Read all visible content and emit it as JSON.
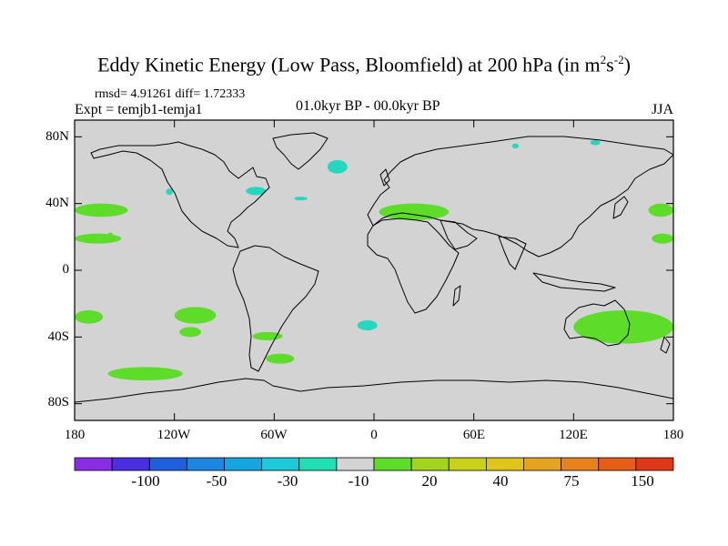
{
  "title": {
    "main": "Eddy Kinetic Energy (Low Pass, Bloomfield) at 200 hPa (in m",
    "sup1": "2",
    "mid": "s",
    "sup2": "-2",
    "close": ")"
  },
  "subtitle": {
    "stats": "rmsd= 4.91261 diff= 1.72333",
    "experiment": "Expt = temjb1-temja1",
    "period": "01.0kyr BP - 00.0kyr BP",
    "season": "JJA"
  },
  "map": {
    "lat_labels": [
      "80N",
      "40N",
      "0",
      "40S",
      "80S"
    ],
    "lon_labels": [
      "180",
      "120W",
      "60W",
      "0",
      "60E",
      "120E",
      "180"
    ],
    "background_color": "#d3d3d3",
    "positive_color": "#5ddd2a",
    "negative_color": "#24d8c0"
  },
  "colorbar": {
    "colors": [
      "#8a2ee6",
      "#4a2fe2",
      "#1f5fdc",
      "#1c86e0",
      "#14a6e0",
      "#1ccad8",
      "#20dfb4",
      "#d3d3d3",
      "#5ddd2a",
      "#a2d61e",
      "#c8d21a",
      "#dfc41c",
      "#e4a320",
      "#e6811c",
      "#e45e18",
      "#de3818"
    ],
    "labels": [
      "-100",
      "-50",
      "-30",
      "-10",
      "20",
      "40",
      "75",
      "150"
    ]
  },
  "chart_data": {
    "type": "heatmap",
    "title": "Eddy Kinetic Energy (Low Pass, Bloomfield) at 200 hPa (in m^2 s^-2)",
    "projection": "cylindrical equidistant",
    "lon_range": [
      -180,
      180
    ],
    "lat_range": [
      -90,
      90
    ],
    "contour_levels": [
      -150,
      -100,
      -75,
      -50,
      -40,
      -30,
      -20,
      -10,
      10,
      20,
      30,
      40,
      50,
      75,
      100,
      150
    ],
    "anomalies": [
      {
        "sign": "+",
        "range": "10 to 20",
        "lon": [
          -180,
          -148
        ],
        "lat": [
          32,
          40
        ]
      },
      {
        "sign": "+",
        "range": "10 to 20",
        "lon": [
          -180,
          -152
        ],
        "lat": [
          16,
          22
        ]
      },
      {
        "sign": "+",
        "range": "10 to 20",
        "lon": [
          -160,
          -157
        ],
        "lat": [
          21,
          22
        ]
      },
      {
        "sign": "+",
        "range": "10 to 20",
        "lon": [
          -180,
          -163
        ],
        "lat": [
          -32,
          -24
        ]
      },
      {
        "sign": "+",
        "range": "10 to 20",
        "lon": [
          -120,
          -95
        ],
        "lat": [
          -32,
          -22
        ]
      },
      {
        "sign": "+",
        "range": "10 to 20",
        "lon": [
          -117,
          -104
        ],
        "lat": [
          -40,
          -34
        ]
      },
      {
        "sign": "+",
        "range": "10 to 20",
        "lon": [
          -73,
          -55
        ],
        "lat": [
          -42,
          -37
        ]
      },
      {
        "sign": "+",
        "range": "10 to 20",
        "lon": [
          -160,
          -115
        ],
        "lat": [
          -66,
          -58
        ]
      },
      {
        "sign": "+",
        "range": "10 to 20",
        "lon": [
          -65,
          -48
        ],
        "lat": [
          -56,
          -50
        ]
      },
      {
        "sign": "+",
        "range": "10 to 20",
        "lon": [
          3,
          45
        ],
        "lat": [
          30,
          40
        ]
      },
      {
        "sign": "+",
        "range": "10 to 20",
        "lon": [
          120,
          180
        ],
        "lat": [
          -44,
          -24
        ]
      },
      {
        "sign": "+",
        "range": "10 to 20",
        "lon": [
          165,
          180
        ],
        "lat": [
          32,
          40
        ]
      },
      {
        "sign": "+",
        "range": "10 to 20",
        "lon": [
          167,
          180
        ],
        "lat": [
          16,
          22
        ]
      },
      {
        "sign": "-",
        "range": "-10 to -20",
        "lon": [
          -28,
          -16
        ],
        "lat": [
          58,
          66
        ]
      },
      {
        "sign": "-",
        "range": "-10 to -20",
        "lon": [
          -125,
          -121
        ],
        "lat": [
          45,
          49
        ]
      },
      {
        "sign": "-",
        "range": "-10 to -20",
        "lon": [
          -77,
          -65
        ],
        "lat": [
          45,
          50
        ]
      },
      {
        "sign": "-",
        "range": "-10 to -20",
        "lon": [
          -48,
          -40
        ],
        "lat": [
          42,
          44
        ]
      },
      {
        "sign": "-",
        "range": "-10 to -20",
        "lon": [
          -10,
          2
        ],
        "lat": [
          -36,
          -30
        ]
      },
      {
        "sign": "-",
        "range": "-10 to -20",
        "lon": [
          130,
          136
        ],
        "lat": [
          75,
          78
        ]
      },
      {
        "sign": "-",
        "range": "-10 to -20",
        "lon": [
          83,
          87
        ],
        "lat": [
          73,
          76
        ]
      }
    ]
  }
}
